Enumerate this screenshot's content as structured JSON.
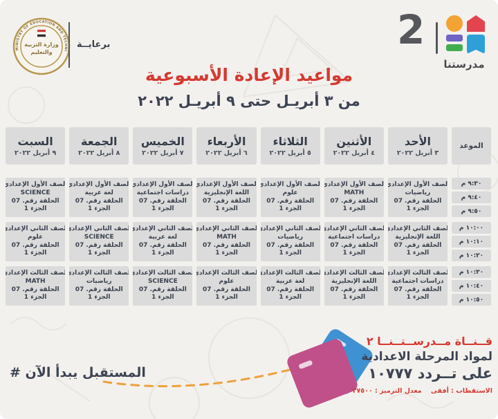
{
  "page": {
    "bg": "#f3f1ee",
    "accent_red": "#d43a31",
    "dark_text": "#3d4453",
    "box_gray": "#dbdbdb"
  },
  "header": {
    "sponsor_label": "برعايــة",
    "seal_ring_text": "MINISTRY OF EDUCATION AND TECHNICAL EDUCATION",
    "seal_center_line1": "وزارة التربية",
    "seal_center_line2": "والتعليم"
  },
  "brand": {
    "number": "2",
    "name": "مدرستنا",
    "colors": {
      "circle": "#f2a334",
      "house": "#e2454e",
      "bar_purple": "#6f63c5",
      "bar_green": "#3faf4e",
      "book_blue": "#2f9fd8"
    }
  },
  "title": {
    "main": "مواعيد الإعادة الأسبوعية",
    "date_range": "من ٣ أبريـل حتى ٩ أبريـل ٢٠٢٢"
  },
  "schedule": {
    "time_label": "الموعد",
    "times": [
      [
        "٩:٣٠ م",
        "٩:٤٠ م",
        "٩:٥٠ م"
      ],
      [
        "١٠:٠٠ م",
        "١٠:١٠ م",
        "١٠:٢٠ م"
      ],
      [
        "١٠:٣٠ م",
        "١٠:٤٠ م",
        "١٠:٥٠ م"
      ]
    ],
    "grades": [
      "الصف الأول الإعدادي",
      "الصف الثاني الإعدادي",
      "الصف الثالث الإعدادي"
    ],
    "episode_label": "الحلقة رقم. 07",
    "part_label": "الجزء 1",
    "days": [
      {
        "name": "الأحد",
        "date": "٣ أبريل ٢٠٢٢",
        "subjects": [
          "رياضيات",
          "اللغة الإنجليزية",
          "دراسات اجتماعية"
        ]
      },
      {
        "name": "الأثنين",
        "date": "٤ أبريل ٢٠٢٢",
        "subjects": [
          "MATH",
          "دراسات اجتماعية",
          "اللغة الإنجليزية"
        ]
      },
      {
        "name": "الثلاثاء",
        "date": "٥ أبريل ٢٠٢٢",
        "subjects": [
          "علوم",
          "رياضيات",
          "لغة عربية"
        ]
      },
      {
        "name": "الأربعاء",
        "date": "٦ أبريل ٢٠٢٢",
        "subjects": [
          "اللغة الإنجليزية",
          "MATH",
          "علوم"
        ]
      },
      {
        "name": "الخميس",
        "date": "٧ أبريل ٢٠٢٢",
        "subjects": [
          "دراسات اجتماعية",
          "لغة عربية",
          "SCIENCE"
        ]
      },
      {
        "name": "الجمعة",
        "date": "٨ أبريل ٢٠٢٢",
        "subjects": [
          "لغة عربية",
          "SCIENCE",
          "رياضيات"
        ]
      },
      {
        "name": "السبت",
        "date": "٩ أبريل ٢٠٢٢",
        "subjects": [
          "SCIENCE",
          "علوم",
          "MATH"
        ]
      }
    ]
  },
  "footer": {
    "hashtag": "# المستقبل يبدأ الآن",
    "channel_line": "قــنــاة مــدرســتــنــا ٢",
    "stage_line": "لمواد المرحلة الاعدادية",
    "frequency_line": "على تــردد ١٠٧٧٧",
    "technical_line": "الاستقطاب : أفقى    معدل الترميز : ٢٧٥٠٠"
  }
}
